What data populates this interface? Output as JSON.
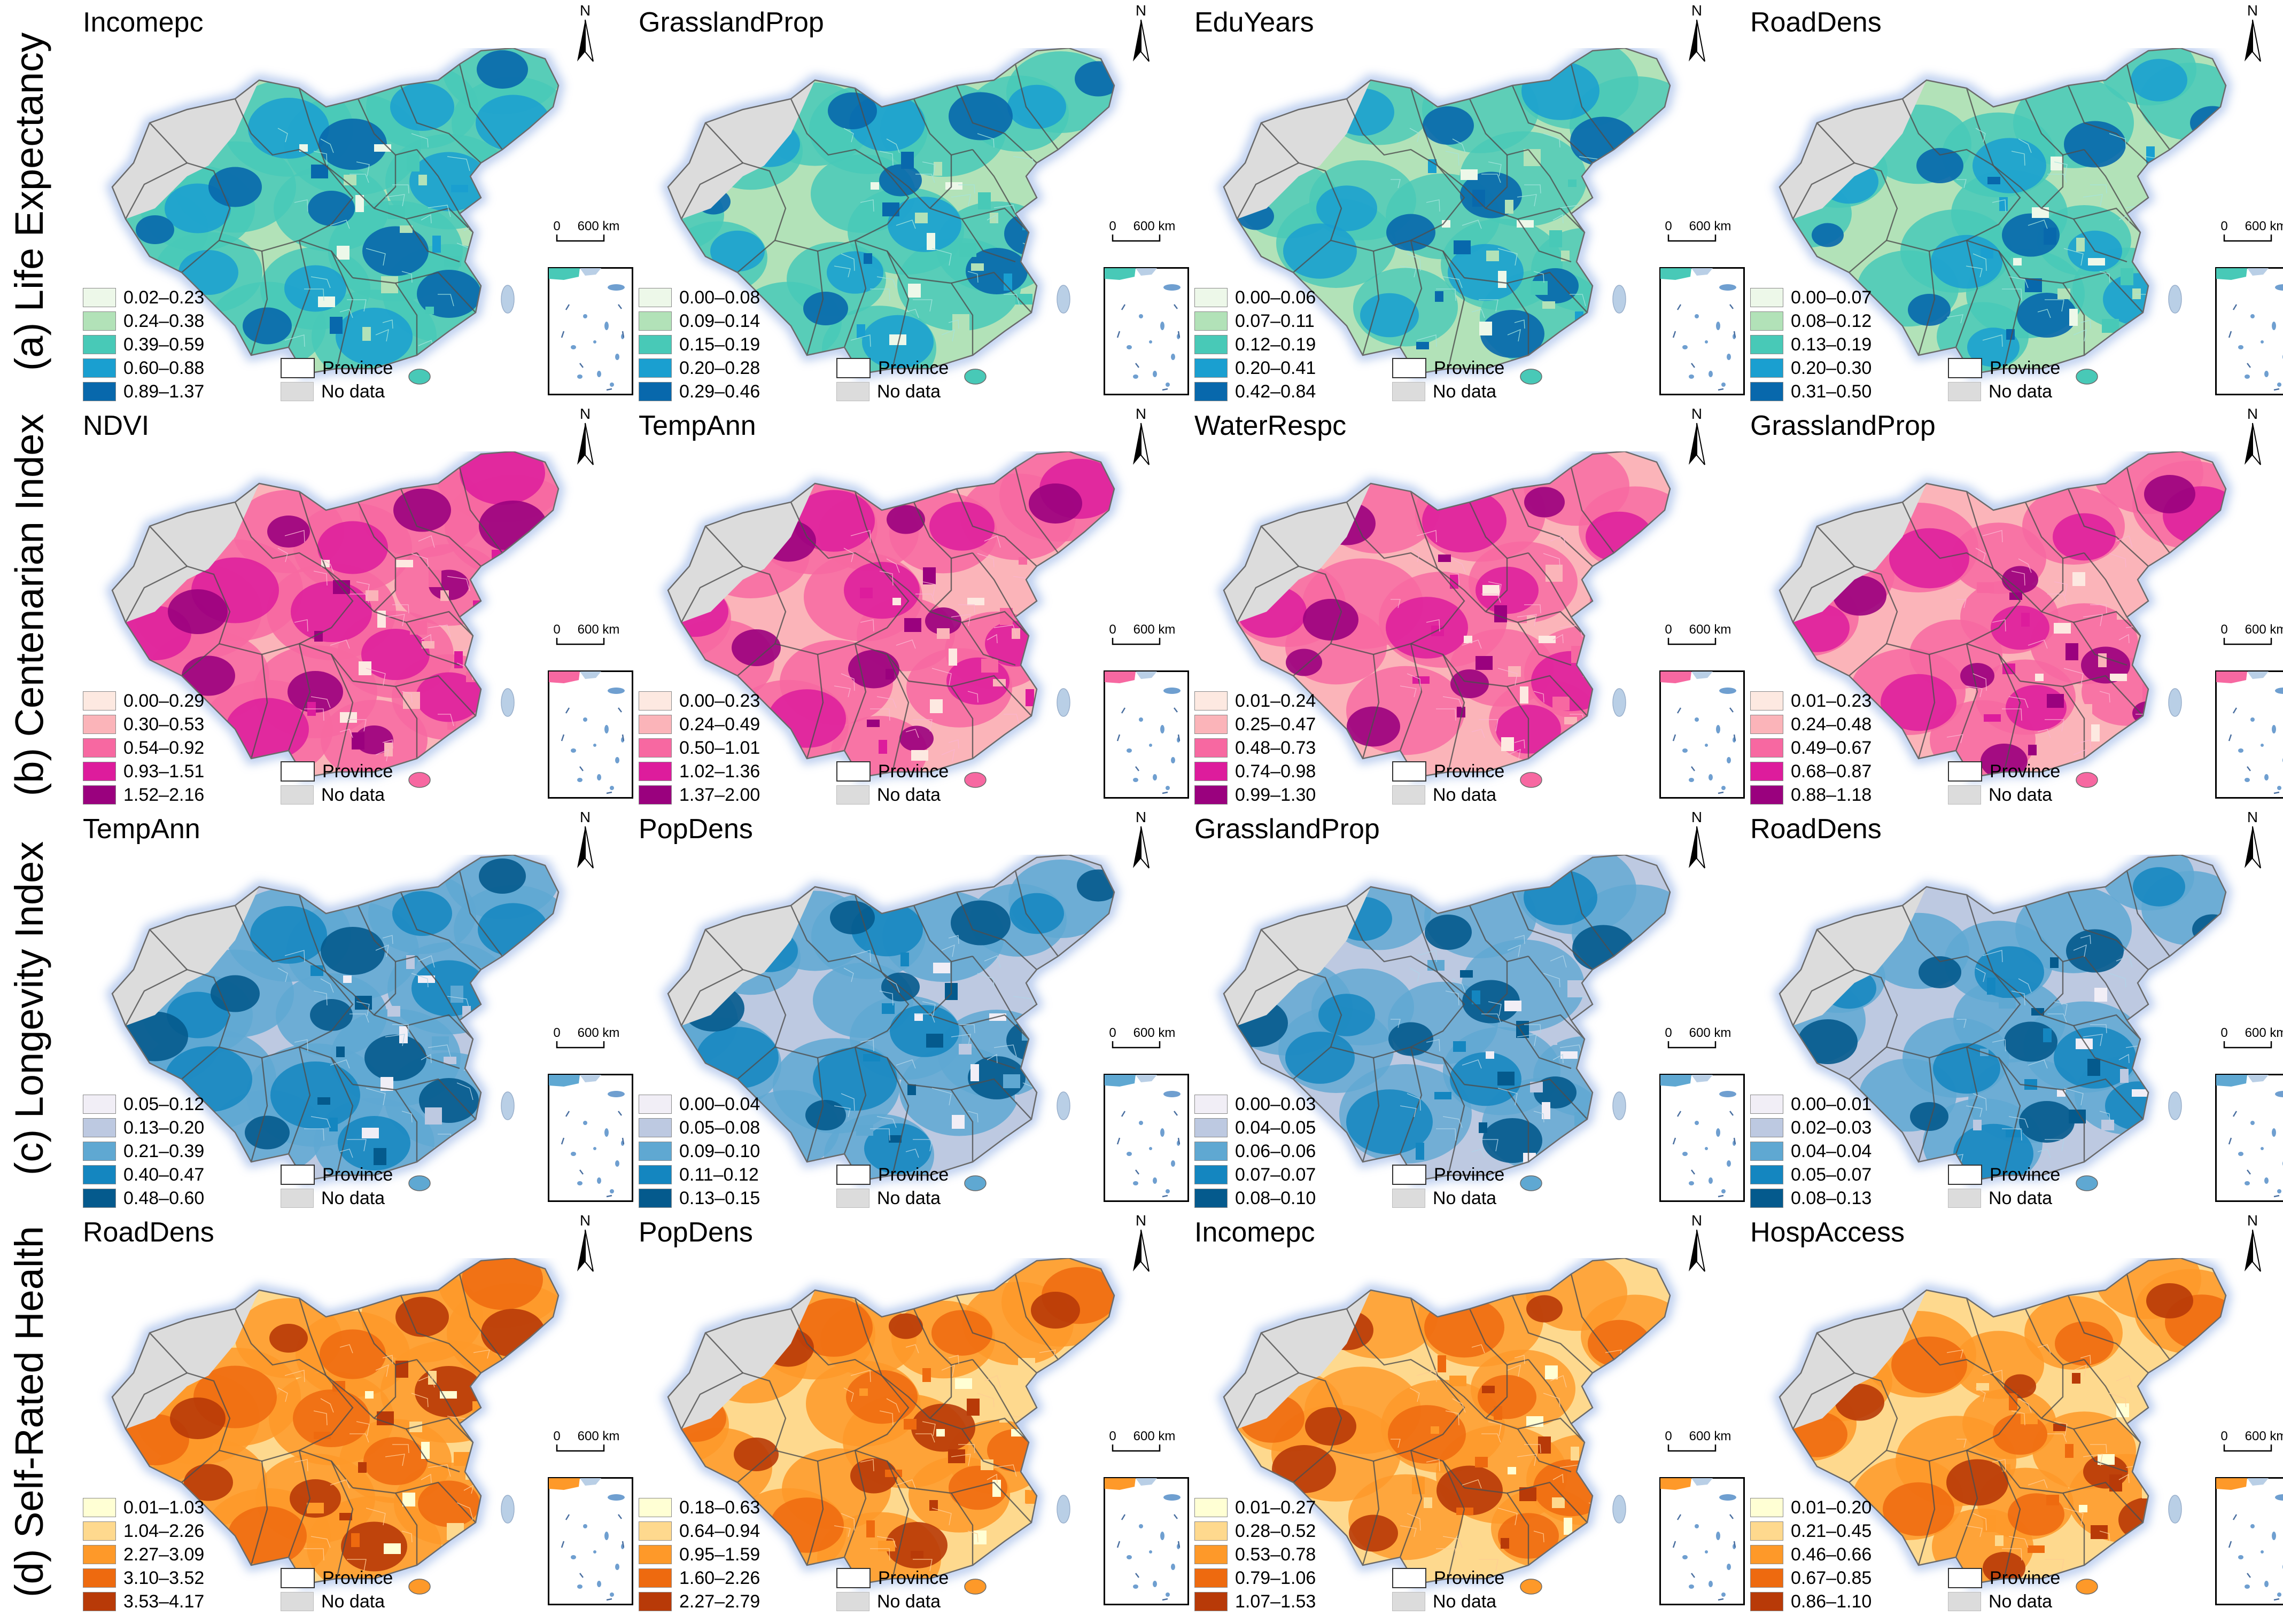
{
  "rows": [
    {
      "label": "(a) Life Expectancy",
      "panels": [
        {
          "title": "Incomepc",
          "legend": [
            "0.02–0.23",
            "0.24–0.38",
            "0.39–0.59",
            "0.60–0.88",
            "0.89–1.37"
          ]
        },
        {
          "title": "GrasslandProp",
          "legend": [
            "0.00–0.08",
            "0.09–0.14",
            "0.15–0.19",
            "0.20–0.28",
            "0.29–0.46"
          ]
        },
        {
          "title": "EduYears",
          "legend": [
            "0.00–0.06",
            "0.07–0.11",
            "0.12–0.19",
            "0.20–0.41",
            "0.42–0.84"
          ]
        },
        {
          "title": "RoadDens",
          "legend": [
            "0.00–0.07",
            "0.08–0.12",
            "0.13–0.19",
            "0.20–0.30",
            "0.31–0.50"
          ]
        }
      ],
      "palette": [
        "#edf8e9",
        "#b2e2b8",
        "#48c9b7",
        "#1a9fd0",
        "#0868ac"
      ]
    },
    {
      "label": "(b) Centenarian Index",
      "panels": [
        {
          "title": "NDVI",
          "legend": [
            "0.00–0.29",
            "0.30–0.53",
            "0.54–0.92",
            "0.93–1.51",
            "1.52–2.16"
          ]
        },
        {
          "title": "TempAnn",
          "legend": [
            "0.00–0.23",
            "0.24–0.49",
            "0.50–1.01",
            "1.02–1.36",
            "1.37–2.00"
          ]
        },
        {
          "title": "WaterRespc",
          "legend": [
            "0.01–0.24",
            "0.25–0.47",
            "0.48–0.73",
            "0.74–0.98",
            "0.99–1.30"
          ]
        },
        {
          "title": "GrasslandProp",
          "legend": [
            "0.01–0.23",
            "0.24–0.48",
            "0.49–0.67",
            "0.68–0.87",
            "0.88–1.18"
          ]
        }
      ],
      "palette": [
        "#fde9e1",
        "#fbb4b9",
        "#f768a1",
        "#dd1c9c",
        "#9a017e"
      ]
    },
    {
      "label": "(c) Longevity Index",
      "panels": [
        {
          "title": "TempAnn",
          "legend": [
            "0.05–0.12",
            "0.13–0.20",
            "0.21–0.39",
            "0.40–0.47",
            "0.48–0.60"
          ]
        },
        {
          "title": "PopDens",
          "legend": [
            "0.00–0.04",
            "0.05–0.08",
            "0.09–0.10",
            "0.11–0.12",
            "0.13–0.15"
          ]
        },
        {
          "title": "GrasslandProp",
          "legend": [
            "0.00–0.03",
            "0.04–0.05",
            "0.06–0.06",
            "0.07–0.07",
            "0.08–0.10"
          ]
        },
        {
          "title": "RoadDens",
          "legend": [
            "0.00–0.01",
            "0.02–0.03",
            "0.04–0.04",
            "0.05–0.07",
            "0.08–0.13"
          ]
        }
      ],
      "palette": [
        "#f1eef6",
        "#bdc9e1",
        "#5fa8d2",
        "#1486c0",
        "#045a8d"
      ]
    },
    {
      "label": "(d) Self-Rated Health",
      "panels": [
        {
          "title": "RoadDens",
          "legend": [
            "0.01–1.03",
            "1.04–2.26",
            "2.27–3.09",
            "3.10–3.52",
            "3.53–4.17"
          ]
        },
        {
          "title": "PopDens",
          "legend": [
            "0.18–0.63",
            "0.64–0.94",
            "0.95–1.59",
            "1.60–2.26",
            "2.27–2.79"
          ]
        },
        {
          "title": "Incomepc",
          "legend": [
            "0.01–0.27",
            "0.28–0.52",
            "0.53–0.78",
            "0.79–1.06",
            "1.07–1.53"
          ]
        },
        {
          "title": "HospAccess",
          "legend": [
            "0.01–0.20",
            "0.21–0.45",
            "0.46–0.66",
            "0.67–0.85",
            "0.86–1.10"
          ]
        }
      ],
      "palette": [
        "#ffffd4",
        "#fed98e",
        "#fe9929",
        "#ee6a0f",
        "#b83a08"
      ]
    }
  ],
  "common": {
    "province_label": "Province",
    "nodata_label": "No data",
    "scale_zero": "0",
    "scale_dist": "600 km",
    "north_label": "N",
    "nodata_color": "#dcdcdc"
  }
}
